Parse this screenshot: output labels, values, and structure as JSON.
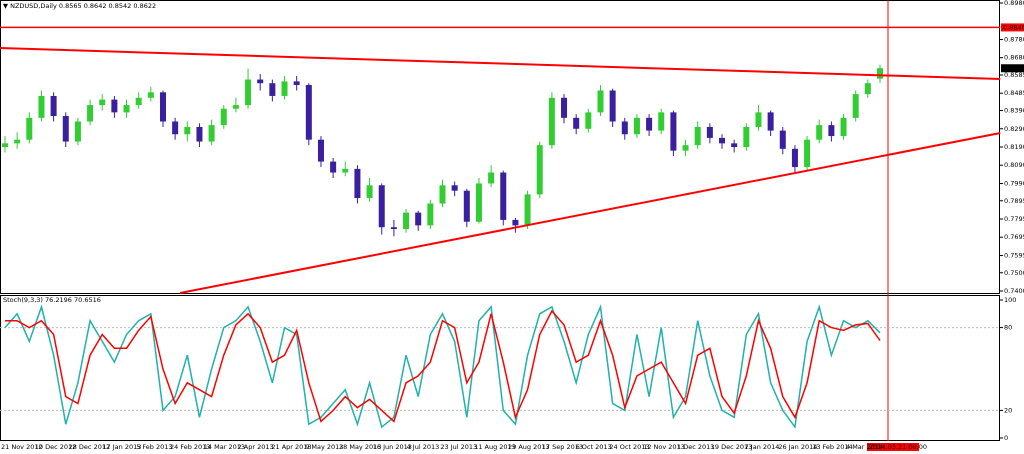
{
  "chart_data": [
    {
      "type": "candlestick",
      "title": "NZDUSD,Daily",
      "bull_color": "#32cd32",
      "bear_color": "#3a1f9e",
      "ylim": [
        0.74,
        0.898
      ],
      "yticks": [
        {
          "value": 0.898,
          "label": "0.8980"
        },
        {
          "value": 0.878,
          "label": "0.8780"
        },
        {
          "value": 0.868,
          "label": "0.8680"
        },
        0.8585,
        0.8485,
        {
          "value": 0.839,
          "label": "0.8390"
        },
        {
          "value": 0.829,
          "label": "0.8290"
        },
        {
          "value": 0.819,
          "label": "0.8190"
        },
        {
          "value": 0.809,
          "label": "0.8090"
        },
        {
          "value": 0.799,
          "label": "0.7990"
        },
        0.7895,
        0.7795,
        0.7695,
        0.7595,
        {
          "value": 0.75,
          "label": "0.7500"
        },
        {
          "value": 0.74,
          "label": "0.7400"
        }
      ],
      "level": {
        "value": 0.8846,
        "label": "0.8846",
        "color": "#ff0000"
      },
      "current_price": 0.8622,
      "cursor_label": "2014.03.21 00:00",
      "trendlines": [
        {
          "x": [
            -0.41,
            81.9
          ],
          "y": [
            0.8733,
            0.8563
          ],
          "color": "#ff0000"
        },
        {
          "x": [
            14.4,
            81.9
          ],
          "y": [
            0.7389,
            0.8267
          ],
          "color": "#ff0000"
        }
      ],
      "ohlc": [
        [
          0.819,
          0.825,
          0.816,
          0.821
        ],
        [
          0.821,
          0.827,
          0.818,
          0.823
        ],
        [
          0.823,
          0.838,
          0.821,
          0.835
        ],
        [
          0.835,
          0.85,
          0.833,
          0.847
        ],
        [
          0.847,
          0.849,
          0.833,
          0.836
        ],
        [
          0.836,
          0.838,
          0.819,
          0.822
        ],
        [
          0.822,
          0.835,
          0.82,
          0.833
        ],
        [
          0.833,
          0.845,
          0.831,
          0.842
        ],
        [
          0.842,
          0.848,
          0.839,
          0.845
        ],
        [
          0.845,
          0.847,
          0.835,
          0.838
        ],
        [
          0.838,
          0.845,
          0.835,
          0.842
        ],
        [
          0.842,
          0.849,
          0.84,
          0.846
        ],
        [
          0.846,
          0.852,
          0.844,
          0.849
        ],
        [
          0.849,
          0.85,
          0.83,
          0.833
        ],
        [
          0.833,
          0.835,
          0.823,
          0.826
        ],
        [
          0.826,
          0.833,
          0.822,
          0.83
        ],
        [
          0.83,
          0.832,
          0.819,
          0.822
        ],
        [
          0.822,
          0.834,
          0.82,
          0.831
        ],
        [
          0.831,
          0.842,
          0.829,
          0.84
        ],
        [
          0.84,
          0.846,
          0.838,
          0.842
        ],
        [
          0.842,
          0.862,
          0.84,
          0.856
        ],
        [
          0.856,
          0.859,
          0.85,
          0.854
        ],
        [
          0.854,
          0.856,
          0.844,
          0.847
        ],
        [
          0.847,
          0.858,
          0.845,
          0.855
        ],
        [
          0.855,
          0.858,
          0.85,
          0.853
        ],
        [
          0.853,
          0.854,
          0.82,
          0.823
        ],
        [
          0.823,
          0.825,
          0.808,
          0.811
        ],
        [
          0.811,
          0.813,
          0.802,
          0.805
        ],
        [
          0.805,
          0.811,
          0.803,
          0.807
        ],
        [
          0.807,
          0.809,
          0.788,
          0.791
        ],
        [
          0.791,
          0.802,
          0.789,
          0.798
        ],
        [
          0.798,
          0.799,
          0.771,
          0.775
        ],
        [
          0.775,
          0.779,
          0.77,
          0.774
        ],
        [
          0.774,
          0.785,
          0.772,
          0.783
        ],
        [
          0.783,
          0.784,
          0.773,
          0.776
        ],
        [
          0.776,
          0.79,
          0.774,
          0.788
        ],
        [
          0.788,
          0.801,
          0.786,
          0.798
        ],
        [
          0.798,
          0.8,
          0.792,
          0.795
        ],
        [
          0.795,
          0.796,
          0.775,
          0.778
        ],
        [
          0.778,
          0.802,
          0.777,
          0.799
        ],
        [
          0.799,
          0.809,
          0.797,
          0.805
        ],
        [
          0.805,
          0.806,
          0.776,
          0.779
        ],
        [
          0.779,
          0.78,
          0.772,
          0.776
        ],
        [
          0.776,
          0.795,
          0.774,
          0.793
        ],
        [
          0.793,
          0.822,
          0.791,
          0.82
        ],
        [
          0.82,
          0.849,
          0.818,
          0.846
        ],
        [
          0.846,
          0.848,
          0.832,
          0.835
        ],
        [
          0.835,
          0.837,
          0.826,
          0.829
        ],
        [
          0.829,
          0.84,
          0.827,
          0.838
        ],
        [
          0.838,
          0.853,
          0.836,
          0.85
        ],
        [
          0.85,
          0.851,
          0.83,
          0.833
        ],
        [
          0.833,
          0.835,
          0.823,
          0.826
        ],
        [
          0.826,
          0.837,
          0.824,
          0.835
        ],
        [
          0.835,
          0.837,
          0.825,
          0.828
        ],
        [
          0.828,
          0.84,
          0.826,
          0.838
        ],
        [
          0.838,
          0.839,
          0.814,
          0.817
        ],
        [
          0.817,
          0.823,
          0.814,
          0.82
        ],
        [
          0.82,
          0.833,
          0.818,
          0.83
        ],
        [
          0.83,
          0.832,
          0.821,
          0.824
        ],
        [
          0.824,
          0.826,
          0.818,
          0.821
        ],
        [
          0.821,
          0.823,
          0.816,
          0.819
        ],
        [
          0.819,
          0.832,
          0.817,
          0.83
        ],
        [
          0.83,
          0.842,
          0.828,
          0.838
        ],
        [
          0.838,
          0.839,
          0.825,
          0.828
        ],
        [
          0.828,
          0.83,
          0.815,
          0.818
        ],
        [
          0.818,
          0.82,
          0.805,
          0.808
        ],
        [
          0.808,
          0.825,
          0.806,
          0.823
        ],
        [
          0.823,
          0.834,
          0.821,
          0.831
        ],
        [
          0.831,
          0.833,
          0.822,
          0.825
        ],
        [
          0.825,
          0.837,
          0.823,
          0.835
        ],
        [
          0.835,
          0.85,
          0.833,
          0.848
        ],
        [
          0.848,
          0.856,
          0.846,
          0.854
        ],
        [
          0.8565,
          0.8642,
          0.8542,
          0.8622
        ]
      ]
    },
    {
      "type": "line",
      "title": "Stoch(9,3,3)",
      "ylim": [
        0,
        100
      ],
      "yticks": [
        100,
        80,
        20,
        0
      ],
      "levels": [
        80,
        20
      ],
      "series": [
        {
          "color": "#20b2aa",
          "values": [
            80,
            90,
            70,
            95,
            60,
            10,
            40,
            85,
            70,
            55,
            75,
            85,
            90,
            20,
            30,
            60,
            15,
            50,
            80,
            85,
            95,
            70,
            40,
            80,
            75,
            10,
            15,
            25,
            35,
            10,
            40,
            8,
            15,
            60,
            30,
            75,
            90,
            70,
            15,
            85,
            95,
            20,
            10,
            60,
            90,
            95,
            70,
            40,
            75,
            95,
            25,
            20,
            75,
            30,
            80,
            15,
            30,
            85,
            45,
            20,
            15,
            75,
            90,
            40,
            20,
            8,
            70,
            95,
            60,
            85,
            80,
            85,
            76.2196
          ]
        },
        {
          "color": "#ff0000",
          "values": [
            85,
            85,
            80,
            85,
            75,
            30,
            25,
            60,
            75,
            65,
            65,
            78,
            88,
            50,
            25,
            40,
            35,
            30,
            60,
            82,
            90,
            80,
            55,
            60,
            78,
            40,
            12,
            20,
            30,
            22,
            28,
            20,
            12,
            40,
            45,
            55,
            85,
            80,
            40,
            55,
            90,
            55,
            15,
            35,
            75,
            92,
            82,
            55,
            60,
            85,
            60,
            22,
            45,
            50,
            55,
            40,
            25,
            60,
            65,
            30,
            18,
            45,
            85,
            65,
            30,
            15,
            40,
            85,
            80,
            78,
            82,
            83,
            70.6516
          ]
        }
      ],
      "x_tick_labels": [
        "21 Nov 2012",
        "10 Dec 2012",
        "28 Dec 2012",
        "17 Jan 2013",
        "5 Feb 2013",
        "24 Feb 2013",
        "14 Mar 2013",
        "2 Apr 2013",
        "21 Apr 2013",
        "9 May 2013",
        "28 May 2013",
        "16 Jun 2013",
        "4 Jul 2013",
        "23 Jul 2013",
        "11 Aug 2013",
        "29 Aug 2013",
        "17 Sep 2013",
        "6 Oct 2013",
        "24 Oct 2013",
        "12 Nov 2013",
        "1 Dec 2013",
        "19 Dec 2013",
        "7 Jan 2014",
        "26 Jan 2014",
        "13 Feb 2014",
        "4 Mar 2014"
      ]
    }
  ]
}
